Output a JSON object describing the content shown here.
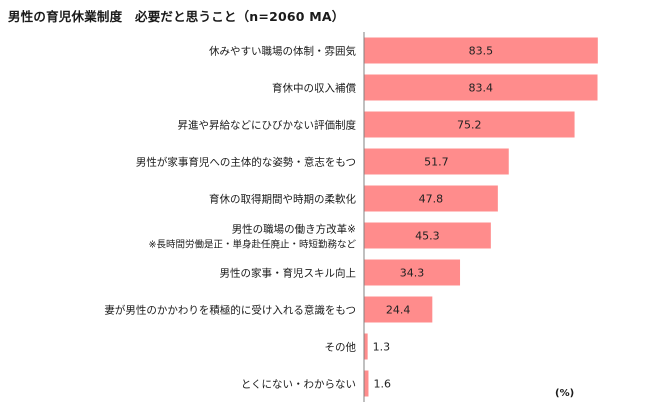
{
  "chart_data": {
    "type": "bar",
    "orientation": "horizontal",
    "title": "男性の育児休業制度　必要だと思うこと（n=2060 MA）",
    "unit": "(%)",
    "bar_color": "#ff8c8c",
    "axis_color": "#808080",
    "xlim": [
      0,
      85
    ],
    "categories": [
      {
        "label": "休みやすい職場の体制・雰囲気",
        "note": "",
        "value": 83.5
      },
      {
        "label": "育休中の収入補償",
        "note": "",
        "value": 83.4
      },
      {
        "label": "昇進や昇給などにひびかない評価制度",
        "note": "",
        "value": 75.2
      },
      {
        "label": "男性が家事育児への主体的な姿勢・意志をもつ",
        "note": "",
        "value": 51.7
      },
      {
        "label": "育休の取得期間や時期の柔軟化",
        "note": "",
        "value": 47.8
      },
      {
        "label": "男性の職場の働き方改革※",
        "note": "※長時間労働是正・単身赴任廃止・時短勤務など",
        "value": 45.3
      },
      {
        "label": "男性の家事・育児スキル向上",
        "note": "",
        "value": 34.3
      },
      {
        "label": "妻が男性のかかわりを積極的に受け入れる意識をもつ",
        "note": "",
        "value": 24.4
      },
      {
        "label": "その他",
        "note": "",
        "value": 1.3
      },
      {
        "label": "とくにない・わからない",
        "note": "",
        "value": 1.6
      }
    ]
  }
}
